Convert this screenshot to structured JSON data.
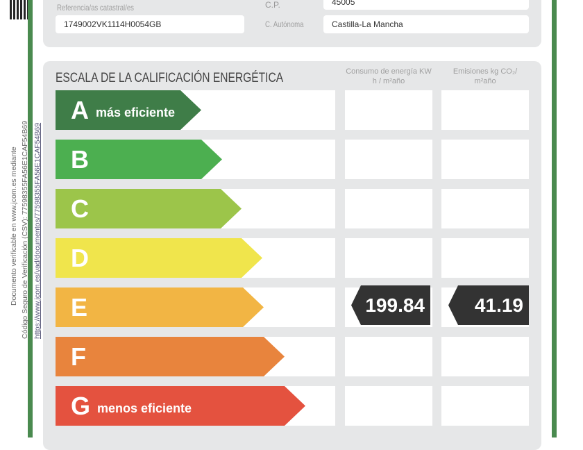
{
  "header": {
    "ref_label": "Referencia/as catastral/es",
    "ref_value": "1749002VK1114H0054GB",
    "cp_label": "C.P.",
    "cp_value": "45005",
    "ca_label": "C. Autónoma",
    "ca_value": "Castilla-La Mancha"
  },
  "side": {
    "line1": "Documento verificable en www.jcom.es mediante",
    "line2": "Código Seguro de Verificación (CSV): 77598355FA56E1CAF54B69",
    "line3": "https://www.jcom.es/vad/documentos/77598355FA56E1CAF54B69"
  },
  "scale": {
    "title": "ESCALA DE LA CALIFICACIÓN ENERGÉTICA",
    "col1": "Consumo de energía KW h / m²año",
    "col2": "Emisiones kg CO₂/ m²año",
    "grades": [
      {
        "letter": "A",
        "sub": "más eficiente",
        "color": "#3f7d48"
      },
      {
        "letter": "B",
        "sub": "",
        "color": "#4caf50"
      },
      {
        "letter": "C",
        "sub": "",
        "color": "#9cc54a"
      },
      {
        "letter": "D",
        "sub": "",
        "color": "#f0e54c"
      },
      {
        "letter": "E",
        "sub": "",
        "color": "#f2b544"
      },
      {
        "letter": "F",
        "sub": "",
        "color": "#e8843d"
      },
      {
        "letter": "G",
        "sub": "menos eficiente",
        "color": "#e4523f"
      }
    ],
    "rating": "E",
    "consumo": "199.84",
    "emisiones": "41.19"
  }
}
